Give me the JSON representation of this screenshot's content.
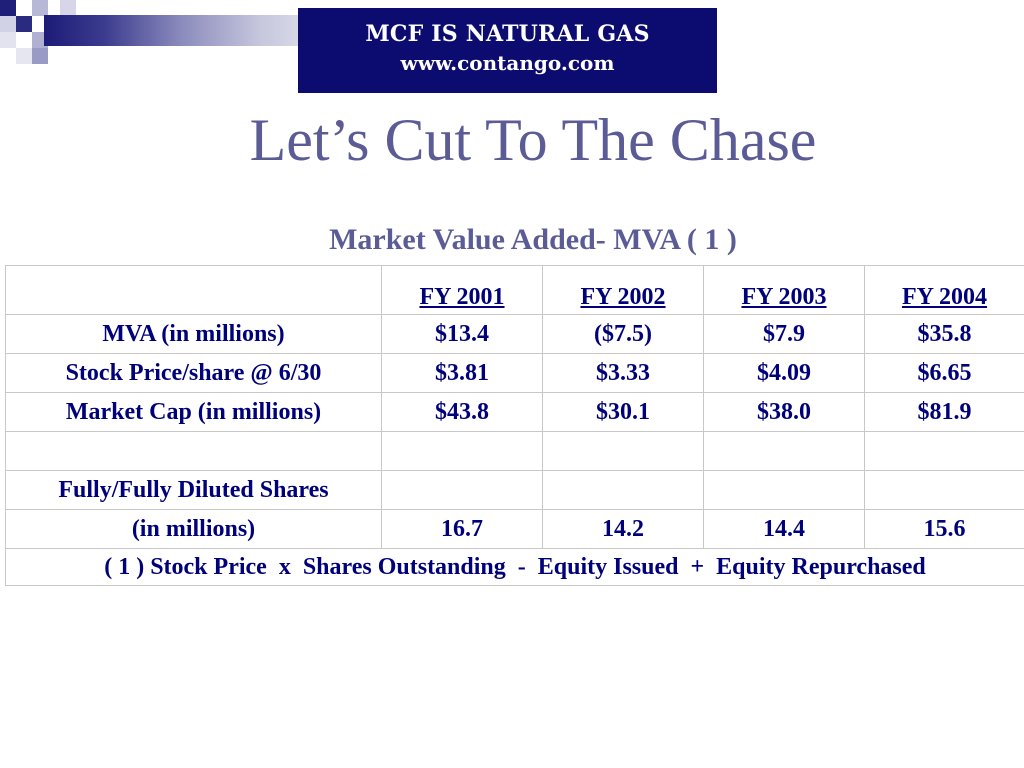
{
  "banner": {
    "line1": "MCF IS NATURAL GAS",
    "line2": "www.contango.com",
    "bg_color": "#0c0c70"
  },
  "title": "Let’s Cut To The Chase",
  "subtitle": "Market Value Added- MVA ( 1 )",
  "colors": {
    "title": "#5b5b96",
    "table_text": "#00007a",
    "table_border": "#c8c8c8"
  },
  "table": {
    "headers": [
      "FY 2001",
      "FY 2002",
      "FY 2003",
      "FY 2004"
    ],
    "rows": [
      {
        "label": "MVA (in millions)",
        "values": [
          "$13.4",
          "($7.5)",
          "$7.9",
          "$35.8"
        ]
      },
      {
        "label": "Stock Price/share @ 6/30",
        "values": [
          "$3.81",
          "$3.33",
          "$4.09",
          "$6.65"
        ]
      },
      {
        "label": "Market Cap (in millions)",
        "values": [
          "$43.8",
          "$30.1",
          "$38.0",
          "$81.9"
        ]
      },
      {
        "label": "",
        "values": [
          "",
          "",
          "",
          ""
        ]
      },
      {
        "label": "Fully/Fully Diluted Shares",
        "values": [
          "",
          "",
          "",
          ""
        ]
      },
      {
        "label": "(in millions)",
        "values": [
          "16.7",
          "14.2",
          "14.4",
          "15.6"
        ]
      }
    ],
    "footnote": "( 1 ) Stock Price  x  Shares Outstanding  -  Equity Issued  +  Equity Repurchased"
  }
}
